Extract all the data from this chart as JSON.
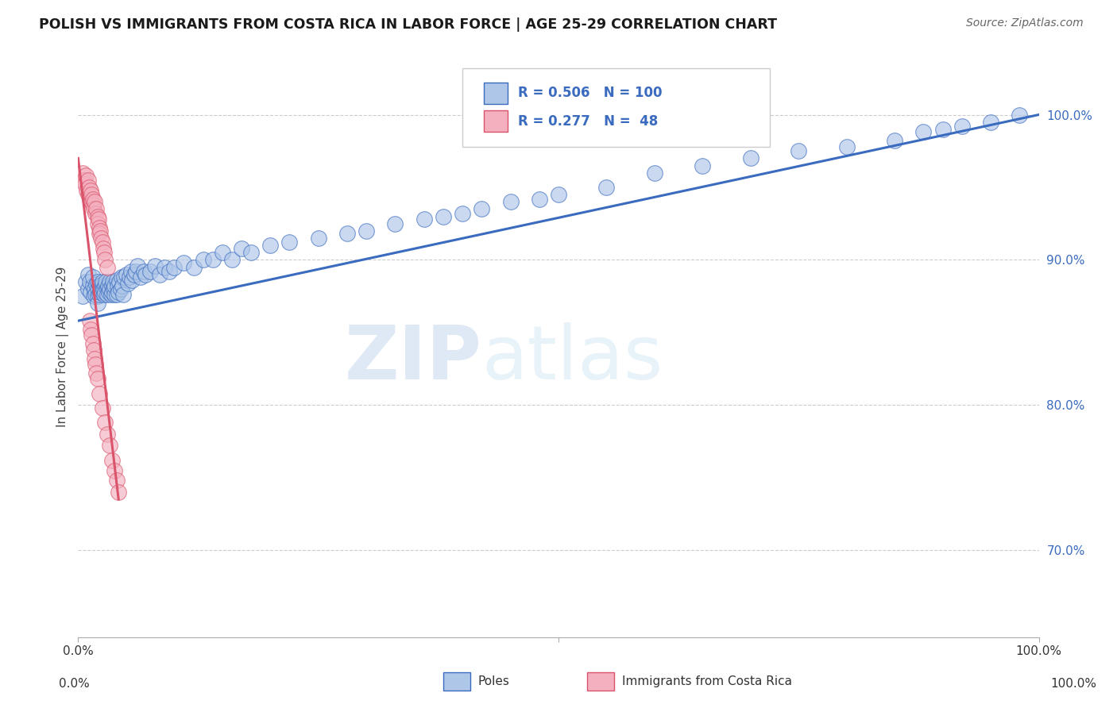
{
  "title": "POLISH VS IMMIGRANTS FROM COSTA RICA IN LABOR FORCE | AGE 25-29 CORRELATION CHART",
  "source": "Source: ZipAtlas.com",
  "ylabel": "In Labor Force | Age 25-29",
  "xlim": [
    0.0,
    1.0
  ],
  "ylim": [
    0.64,
    1.04
  ],
  "y_tick_vals_right": [
    0.7,
    0.8,
    0.9,
    1.0
  ],
  "y_tick_labels_right": [
    "70.0%",
    "80.0%",
    "90.0%",
    "100.0%"
  ],
  "legend_blue_R": "0.506",
  "legend_blue_N": "100",
  "legend_pink_R": "0.277",
  "legend_pink_N": " 48",
  "blue_color": "#aec6e8",
  "blue_line_color": "#3a6bbf",
  "pink_color": "#f4b0bf",
  "pink_line_color": "#d9536a",
  "watermark_zip": "ZIP",
  "watermark_atlas": "atlas",
  "blue_scatter_x": [
    0.005,
    0.008,
    0.01,
    0.01,
    0.012,
    0.013,
    0.015,
    0.015,
    0.016,
    0.017,
    0.018,
    0.019,
    0.02,
    0.02,
    0.02,
    0.02,
    0.022,
    0.022,
    0.023,
    0.025,
    0.025,
    0.025,
    0.026,
    0.027,
    0.028,
    0.028,
    0.029,
    0.03,
    0.03,
    0.031,
    0.032,
    0.033,
    0.033,
    0.034,
    0.035,
    0.035,
    0.036,
    0.037,
    0.038,
    0.038,
    0.04,
    0.04,
    0.041,
    0.042,
    0.043,
    0.044,
    0.045,
    0.046,
    0.047,
    0.048,
    0.05,
    0.052,
    0.053,
    0.055,
    0.056,
    0.058,
    0.06,
    0.062,
    0.065,
    0.068,
    0.07,
    0.075,
    0.08,
    0.085,
    0.09,
    0.095,
    0.1,
    0.11,
    0.12,
    0.13,
    0.14,
    0.15,
    0.16,
    0.17,
    0.18,
    0.2,
    0.22,
    0.25,
    0.28,
    0.3,
    0.33,
    0.36,
    0.38,
    0.4,
    0.42,
    0.45,
    0.48,
    0.5,
    0.55,
    0.6,
    0.65,
    0.7,
    0.75,
    0.8,
    0.85,
    0.88,
    0.9,
    0.92,
    0.95,
    0.98
  ],
  "blue_scatter_y": [
    0.875,
    0.885,
    0.88,
    0.89,
    0.885,
    0.878,
    0.882,
    0.888,
    0.875,
    0.88,
    0.876,
    0.883,
    0.88,
    0.885,
    0.875,
    0.87,
    0.882,
    0.876,
    0.878,
    0.883,
    0.878,
    0.885,
    0.88,
    0.876,
    0.882,
    0.878,
    0.885,
    0.88,
    0.876,
    0.882,
    0.878,
    0.885,
    0.88,
    0.876,
    0.882,
    0.878,
    0.885,
    0.88,
    0.876,
    0.882,
    0.886,
    0.876,
    0.882,
    0.878,
    0.885,
    0.88,
    0.888,
    0.882,
    0.876,
    0.888,
    0.89,
    0.884,
    0.888,
    0.892,
    0.886,
    0.89,
    0.892,
    0.896,
    0.888,
    0.892,
    0.89,
    0.892,
    0.896,
    0.89,
    0.895,
    0.892,
    0.895,
    0.898,
    0.895,
    0.9,
    0.9,
    0.905,
    0.9,
    0.908,
    0.905,
    0.91,
    0.912,
    0.915,
    0.918,
    0.92,
    0.925,
    0.928,
    0.93,
    0.932,
    0.935,
    0.94,
    0.942,
    0.945,
    0.95,
    0.96,
    0.965,
    0.97,
    0.975,
    0.978,
    0.982,
    0.988,
    0.99,
    0.992,
    0.995,
    1.0
  ],
  "pink_scatter_x": [
    0.005,
    0.006,
    0.007,
    0.008,
    0.009,
    0.01,
    0.01,
    0.011,
    0.012,
    0.013,
    0.014,
    0.014,
    0.015,
    0.015,
    0.016,
    0.017,
    0.018,
    0.019,
    0.02,
    0.02,
    0.021,
    0.022,
    0.022,
    0.023,
    0.024,
    0.025,
    0.026,
    0.027,
    0.028,
    0.03,
    0.012,
    0.013,
    0.014,
    0.015,
    0.016,
    0.017,
    0.018,
    0.019,
    0.02,
    0.022,
    0.025,
    0.028,
    0.03,
    0.033,
    0.035,
    0.038,
    0.04,
    0.042
  ],
  "pink_scatter_y": [
    0.96,
    0.955,
    0.952,
    0.958,
    0.948,
    0.955,
    0.945,
    0.95,
    0.942,
    0.948,
    0.94,
    0.945,
    0.938,
    0.942,
    0.935,
    0.94,
    0.932,
    0.935,
    0.93,
    0.925,
    0.928,
    0.922,
    0.918,
    0.92,
    0.915,
    0.912,
    0.908,
    0.905,
    0.9,
    0.895,
    0.858,
    0.852,
    0.848,
    0.842,
    0.838,
    0.832,
    0.828,
    0.822,
    0.818,
    0.808,
    0.798,
    0.788,
    0.78,
    0.772,
    0.762,
    0.755,
    0.748,
    0.74
  ],
  "blue_line_x0": 0.0,
  "blue_line_y0": 0.858,
  "blue_line_x1": 1.0,
  "blue_line_y1": 1.0,
  "pink_line_x0": 0.0,
  "pink_line_y0": 0.97,
  "pink_line_x1": 0.042,
  "pink_line_y1": 0.735
}
